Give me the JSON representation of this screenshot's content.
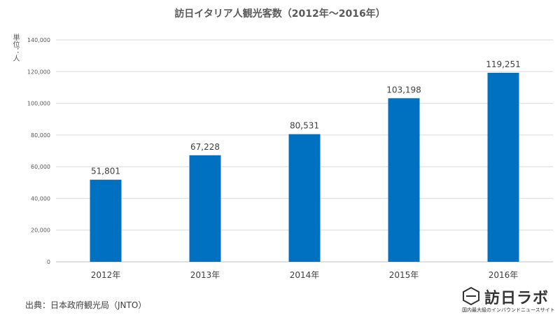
{
  "chart_data": {
    "type": "bar",
    "title": "訪日イタリア人観光客数（2012年～2016年）",
    "ylabel": "単位：人",
    "xlabel": "",
    "categories": [
      "2012年",
      "2013年",
      "2014年",
      "2015年",
      "2016年"
    ],
    "values": [
      51801,
      67228,
      80531,
      103198,
      119251
    ],
    "data_labels": [
      "51,801",
      "67,228",
      "80,531",
      "103,198",
      "119,251"
    ],
    "y_ticks": [
      0,
      20000,
      40000,
      60000,
      80000,
      100000,
      120000,
      140000
    ],
    "y_tick_labels": [
      "0",
      "20,000",
      "40,000",
      "60,000",
      "80,000",
      "100,000",
      "120,000",
      "140,000"
    ],
    "ylim": [
      0,
      140000
    ],
    "grid": true,
    "legend": "none",
    "bar_color": "#0070C0"
  },
  "source": "出典：日本政府観光局（JNTO）",
  "logo": {
    "name": "訪日ラボ",
    "tagline": "国内最大級のインバウンドニュースサイト"
  }
}
